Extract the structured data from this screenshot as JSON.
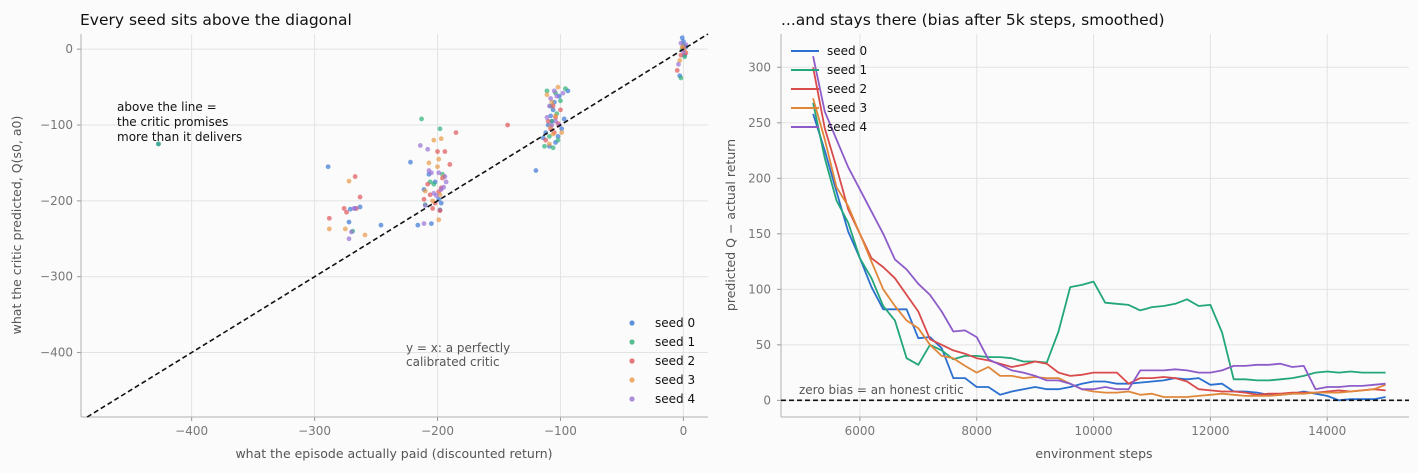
{
  "chart_data": [
    {
      "type": "scatter",
      "title": "Every seed sits above the diagonal",
      "xlabel": "what the episode actually paid (discounted return)",
      "ylabel": "what the critic predicted, Q(s0, a0)",
      "xlim": [
        -490,
        20
      ],
      "ylim": [
        -485,
        20
      ],
      "xticks": [
        -400,
        -300,
        -200,
        -100,
        0
      ],
      "yticks": [
        0,
        -100,
        -200,
        -300,
        -400
      ],
      "xtick_labels": [
        "−400",
        "−300",
        "−200",
        "−100",
        "0"
      ],
      "ytick_labels": [
        "0",
        "−100",
        "−200",
        "−300",
        "−400"
      ],
      "grid": true,
      "legend_position": "bottom-right",
      "reference_line": {
        "type": "y = x",
        "style": "dashed",
        "color": "#111111"
      },
      "annotations": [
        {
          "lines": [
            "above the line =",
            "the critic promises",
            "more than it delivers"
          ]
        },
        {
          "lines": [
            "y = x: a perfectly",
            "calibrated critic"
          ]
        }
      ],
      "series": [
        {
          "name": "seed 0",
          "color": "#3a78d4",
          "points": [
            [
              -427,
              -125
            ],
            [
              -289,
              -155
            ],
            [
              -272,
              -228
            ],
            [
              -271,
              -211
            ],
            [
              -263,
              -208
            ],
            [
              -246,
              -232
            ],
            [
              -222,
              -149
            ],
            [
              -216,
              -232
            ],
            [
              -211,
              -185
            ],
            [
              -207,
              -165
            ],
            [
              -205,
              -230
            ],
            [
              -202,
              -175
            ],
            [
              -199,
              -198
            ],
            [
              -198,
              -212
            ],
            [
              -197,
              -203
            ],
            [
              -120,
              -160
            ],
            [
              -114,
              -117
            ],
            [
              -112,
              -110
            ],
            [
              -110,
              -100
            ],
            [
              -109,
              -128
            ],
            [
              -108,
              -88
            ],
            [
              -107,
              -95
            ],
            [
              -106,
              -80
            ],
            [
              -105,
              -70
            ],
            [
              -104,
              -123
            ],
            [
              -102,
              -115
            ],
            [
              -101,
              -62
            ],
            [
              -99,
              -105
            ],
            [
              -97,
              -92
            ],
            [
              -94,
              -55
            ],
            [
              -3,
              -35
            ],
            [
              -1,
              15
            ],
            [
              0,
              10
            ],
            [
              1,
              -8
            ],
            [
              2,
              3
            ]
          ]
        },
        {
          "name": "seed 1",
          "color": "#2fb07a",
          "points": [
            [
              -427,
              -125
            ],
            [
              -269,
              -240
            ],
            [
              -213,
              -92
            ],
            [
              -210,
              -205
            ],
            [
              -206,
              -175
            ],
            [
              -203,
              -178
            ],
            [
              -198,
              -105
            ],
            [
              -196,
              -165
            ],
            [
              -113,
              -128
            ],
            [
              -111,
              -55
            ],
            [
              -109,
              -115
            ],
            [
              -108,
              -75
            ],
            [
              -107,
              -95
            ],
            [
              -106,
              -130
            ],
            [
              -104,
              -58
            ],
            [
              -103,
              -85
            ],
            [
              -102,
              -120
            ],
            [
              -100,
              -68
            ],
            [
              -96,
              -52
            ],
            [
              -2,
              -38
            ],
            [
              -1,
              0
            ],
            [
              0,
              5
            ],
            [
              1,
              -10
            ]
          ]
        },
        {
          "name": "seed 2",
          "color": "#e0555a",
          "points": [
            [
              -288,
              -223
            ],
            [
              -276,
              -210
            ],
            [
              -274,
              -215
            ],
            [
              -267,
              -168
            ],
            [
              -266,
              -210
            ],
            [
              -263,
              -195
            ],
            [
              -211,
              -198
            ],
            [
              -208,
              -178
            ],
            [
              -206,
              -192
            ],
            [
              -204,
              -210
            ],
            [
              -202,
              -203
            ],
            [
              -200,
              -135
            ],
            [
              -199,
              -188
            ],
            [
              -198,
              -213
            ],
            [
              -197,
              -183
            ],
            [
              -196,
              -170
            ],
            [
              -194,
              -135
            ],
            [
              -190,
              -152
            ],
            [
              -185,
              -110
            ],
            [
              -143,
              -100
            ],
            [
              -112,
              -120
            ],
            [
              -110,
              -95
            ],
            [
              -108,
              -105
            ],
            [
              -106,
              -75
            ],
            [
              -105,
              -110
            ],
            [
              -104,
              -90
            ],
            [
              -102,
              -98
            ],
            [
              -100,
              -80
            ],
            [
              -5,
              -28
            ],
            [
              -2,
              -8
            ],
            [
              0,
              2
            ],
            [
              2,
              -5
            ]
          ]
        },
        {
          "name": "seed 3",
          "color": "#e89a48",
          "points": [
            [
              -288,
              -237
            ],
            [
              -275,
              -237
            ],
            [
              -272,
              -174
            ],
            [
              -259,
              -245
            ],
            [
              -210,
              -187
            ],
            [
              -207,
              -150
            ],
            [
              -204,
              -200
            ],
            [
              -203,
              -120
            ],
            [
              -200,
              -155
            ],
            [
              -199,
              -145
            ],
            [
              -199,
              -225
            ],
            [
              -198,
              -192
            ],
            [
              -197,
              -118
            ],
            [
              -195,
              -168
            ],
            [
              -111,
              -60
            ],
            [
              -109,
              -125
            ],
            [
              -108,
              -102
            ],
            [
              -107,
              -70
            ],
            [
              -106,
              -112
            ],
            [
              -104,
              -88
            ],
            [
              -102,
              -50
            ],
            [
              -99,
              -110
            ],
            [
              -3,
              -15
            ],
            [
              -1,
              3
            ],
            [
              1,
              -2
            ]
          ]
        },
        {
          "name": "seed 4",
          "color": "#9a72d4",
          "points": [
            [
              -272,
              -250
            ],
            [
              -270,
              -241
            ],
            [
              -268,
              -210
            ],
            [
              -267,
              -210
            ],
            [
              -214,
              -127
            ],
            [
              -211,
              -230
            ],
            [
              -210,
              -206
            ],
            [
              -208,
              -132
            ],
            [
              -207,
              -160
            ],
            [
              -205,
              -163
            ],
            [
              -203,
              -190
            ],
            [
              -201,
              -193
            ],
            [
              -199,
              -163
            ],
            [
              -197,
              -185
            ],
            [
              -195,
              -182
            ],
            [
              -194,
              -168
            ],
            [
              -193,
              -175
            ],
            [
              -111,
              -90
            ],
            [
              -109,
              -75
            ],
            [
              -108,
              -65
            ],
            [
              -107,
              -100
            ],
            [
              -105,
              -55
            ],
            [
              -104,
              -95
            ],
            [
              -103,
              -62
            ],
            [
              -101,
              -100
            ],
            [
              -98,
              -58
            ],
            [
              -4,
              -20
            ],
            [
              -2,
              8
            ],
            [
              0,
              -3
            ],
            [
              2,
              6
            ]
          ]
        }
      ]
    },
    {
      "type": "line",
      "title": "...and stays there (bias after 5k steps, smoothed)",
      "xlabel": "environment steps",
      "ylabel": "predicted Q  −  actual return",
      "xlim": [
        4650,
        15400
      ],
      "ylim": [
        -15,
        330
      ],
      "xticks": [
        6000,
        8000,
        10000,
        12000,
        14000
      ],
      "yticks": [
        0,
        50,
        100,
        150,
        200,
        250,
        300
      ],
      "xtick_labels": [
        "6000",
        "8000",
        "10000",
        "12000",
        "14000"
      ],
      "ytick_labels": [
        "0",
        "50",
        "100",
        "150",
        "200",
        "250",
        "300"
      ],
      "grid": true,
      "legend_position": "top-left",
      "reference_line": {
        "y": 0,
        "style": "dashed",
        "color": "#111111",
        "label": "zero bias = an honest critic"
      },
      "x": [
        5200,
        5400,
        5600,
        5800,
        6000,
        6200,
        6400,
        6600,
        6800,
        7000,
        7200,
        7400,
        7600,
        7800,
        8000,
        8200,
        8400,
        8600,
        8800,
        9000,
        9200,
        9400,
        9600,
        9800,
        10000,
        10200,
        10400,
        10600,
        10800,
        11000,
        11200,
        11400,
        11600,
        11800,
        12000,
        12200,
        12400,
        12600,
        12800,
        13000,
        13200,
        13400,
        13600,
        13800,
        14000,
        14200,
        14400,
        14600,
        14800,
        15000
      ],
      "series": [
        {
          "name": "seed 0",
          "color": "#2b6fcf",
          "values": [
            258,
            225,
            188,
            152,
            128,
            102,
            82,
            82,
            82,
            56,
            57,
            47,
            20,
            20,
            12,
            12,
            5,
            8,
            10,
            12,
            10,
            10,
            12,
            15,
            17,
            17,
            15,
            15,
            16,
            17,
            18,
            20,
            19,
            20,
            14,
            15,
            8,
            8,
            7,
            5,
            5,
            6,
            8,
            6,
            4,
            0,
            1,
            1,
            1,
            3
          ]
        },
        {
          "name": "seed 1",
          "color": "#22a67a",
          "values": [
            268,
            218,
            180,
            160,
            128,
            110,
            85,
            72,
            38,
            32,
            50,
            45,
            37,
            40,
            40,
            39,
            39,
            38,
            35,
            35,
            34,
            62,
            102,
            104,
            107,
            88,
            87,
            86,
            81,
            84,
            85,
            87,
            91,
            85,
            86,
            61,
            19,
            19,
            18,
            18,
            19,
            20,
            22,
            25,
            26,
            25,
            26,
            25,
            25,
            25
          ]
        },
        {
          "name": "seed 2",
          "color": "#d94a4a",
          "values": [
            300,
            245,
            210,
            172,
            150,
            128,
            120,
            110,
            95,
            80,
            55,
            50,
            45,
            42,
            38,
            36,
            33,
            30,
            32,
            35,
            33,
            25,
            22,
            23,
            25,
            25,
            25,
            15,
            20,
            20,
            21,
            20,
            17,
            10,
            9,
            8,
            8,
            7,
            5,
            6,
            6,
            7,
            7,
            7,
            8,
            9,
            8,
            9,
            10,
            9
          ]
        },
        {
          "name": "seed 3",
          "color": "#e0873a",
          "values": [
            272,
            235,
            192,
            175,
            150,
            125,
            100,
            85,
            72,
            65,
            50,
            40,
            38,
            31,
            25,
            30,
            22,
            22,
            20,
            21,
            20,
            20,
            15,
            10,
            8,
            7,
            7,
            8,
            5,
            6,
            3,
            3,
            3,
            4,
            5,
            6,
            5,
            4,
            4,
            4,
            5,
            6,
            6,
            7,
            7,
            7,
            8,
            9,
            10,
            14
          ]
        },
        {
          "name": "seed 4",
          "color": "#8d5cc9",
          "values": [
            310,
            260,
            235,
            210,
            190,
            170,
            150,
            127,
            118,
            105,
            95,
            80,
            62,
            63,
            57,
            37,
            32,
            27,
            25,
            22,
            18,
            18,
            15,
            10,
            10,
            12,
            10,
            10,
            27,
            27,
            27,
            28,
            27,
            25,
            25,
            27,
            31,
            31,
            32,
            32,
            33,
            30,
            31,
            10,
            12,
            12,
            13,
            13,
            14,
            15
          ]
        }
      ]
    }
  ]
}
